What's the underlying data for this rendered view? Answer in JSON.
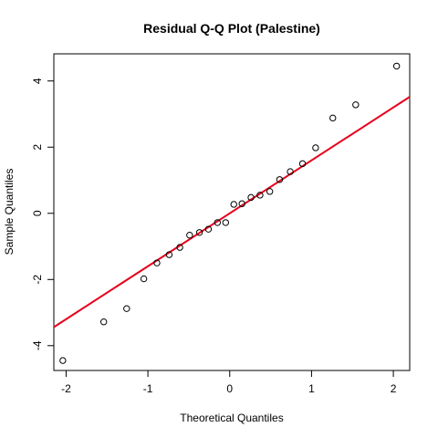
{
  "chart_data": {
    "type": "scatter",
    "title": "Residual Q-Q Plot (Palestine)",
    "xlabel": "Theoretical Quantiles",
    "ylabel": "Sample Quantiles",
    "xlim": [
      -2.15,
      2.2
    ],
    "ylim": [
      -4.75,
      4.82
    ],
    "x_ticks": [
      -2,
      -1,
      0,
      1,
      2
    ],
    "y_ticks": [
      -4,
      -2,
      0,
      2,
      4
    ],
    "x_tick_labels": [
      "-2",
      "-1",
      "0",
      "1",
      "2"
    ],
    "y_tick_labels": [
      "-4",
      "-2",
      "0",
      "2",
      "4"
    ],
    "grid": false,
    "points": [
      {
        "x": -2.04,
        "y": -4.45
      },
      {
        "x": -1.54,
        "y": -3.28
      },
      {
        "x": -1.26,
        "y": -2.88
      },
      {
        "x": -1.05,
        "y": -1.98
      },
      {
        "x": -0.89,
        "y": -1.5
      },
      {
        "x": -0.74,
        "y": -1.25
      },
      {
        "x": -0.61,
        "y": -1.03
      },
      {
        "x": -0.49,
        "y": -0.66
      },
      {
        "x": -0.37,
        "y": -0.58
      },
      {
        "x": -0.26,
        "y": -0.48
      },
      {
        "x": -0.15,
        "y": -0.28
      },
      {
        "x": -0.05,
        "y": -0.28
      },
      {
        "x": 0.05,
        "y": 0.27
      },
      {
        "x": 0.15,
        "y": 0.29
      },
      {
        "x": 0.26,
        "y": 0.48
      },
      {
        "x": 0.37,
        "y": 0.55
      },
      {
        "x": 0.49,
        "y": 0.66
      },
      {
        "x": 0.61,
        "y": 1.02
      },
      {
        "x": 0.74,
        "y": 1.26
      },
      {
        "x": 0.89,
        "y": 1.5
      },
      {
        "x": 1.05,
        "y": 1.98
      },
      {
        "x": 1.26,
        "y": 2.88
      },
      {
        "x": 1.54,
        "y": 3.28
      },
      {
        "x": 2.04,
        "y": 4.45
      }
    ],
    "reference_line": {
      "intercept": 0.0,
      "slope": 1.6,
      "color": "#e8001c"
    },
    "point_color": "#000000"
  }
}
